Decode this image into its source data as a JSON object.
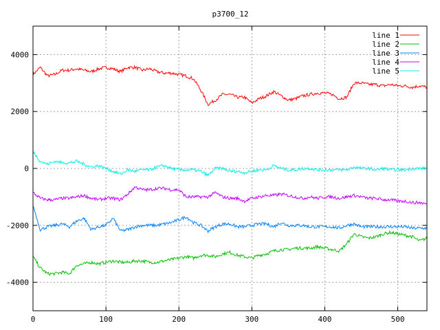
{
  "chart_data": {
    "type": "line",
    "title": "p3700_12",
    "xlabel": "",
    "ylabel": "",
    "xlim": [
      0,
      540
    ],
    "ylim": [
      -5000,
      5000
    ],
    "xticks": [
      0,
      100,
      200,
      300,
      400,
      500
    ],
    "yticks": [
      -4000,
      -2000,
      0,
      2000,
      4000
    ],
    "grid": true,
    "legend_position": "top-right",
    "x_step": 10,
    "series": [
      {
        "name": "line 1",
        "color": "#ff0000",
        "values": [
          3300,
          3550,
          3250,
          3300,
          3450,
          3450,
          3500,
          3450,
          3400,
          3500,
          3550,
          3500,
          3400,
          3550,
          3550,
          3450,
          3500,
          3400,
          3350,
          3350,
          3300,
          3250,
          3150,
          2750,
          2250,
          2400,
          2600,
          2600,
          2500,
          2500,
          2300,
          2450,
          2550,
          2700,
          2550,
          2400,
          2450,
          2550,
          2600,
          2650,
          2650,
          2600,
          2450,
          2500,
          3000,
          3000,
          2950,
          2950,
          2900,
          2950,
          2900,
          2900,
          2850,
          2900,
          2850
        ]
      },
      {
        "name": "line 2",
        "color": "#00c000",
        "values": [
          -3100,
          -3500,
          -3700,
          -3700,
          -3650,
          -3700,
          -3400,
          -3350,
          -3300,
          -3350,
          -3300,
          -3250,
          -3300,
          -3300,
          -3250,
          -3250,
          -3300,
          -3300,
          -3250,
          -3200,
          -3150,
          -3100,
          -3150,
          -3050,
          -3050,
          -3100,
          -3000,
          -2950,
          -3050,
          -3100,
          -3150,
          -3050,
          -3000,
          -2900,
          -2850,
          -2850,
          -2800,
          -2800,
          -2800,
          -2750,
          -2800,
          -2850,
          -2900,
          -2650,
          -2300,
          -2400,
          -2450,
          -2400,
          -2300,
          -2250,
          -2300,
          -2350,
          -2400,
          -2550,
          -2450
        ]
      },
      {
        "name": "line 3",
        "color": "#0080ff",
        "values": [
          -1300,
          -2150,
          -2050,
          -2000,
          -1950,
          -2050,
          -1850,
          -1750,
          -2150,
          -2050,
          -2000,
          -1750,
          -2200,
          -2150,
          -2050,
          -2000,
          -2000,
          -2000,
          -1950,
          -1900,
          -1800,
          -1700,
          -1900,
          -2000,
          -2200,
          -2050,
          -1950,
          -1950,
          -2050,
          -2050,
          -2000,
          -1950,
          -1950,
          -2050,
          -1900,
          -2000,
          -2000,
          -2000,
          -2050,
          -2050,
          -2050,
          -2050,
          -2100,
          -2000,
          -1950,
          -2050,
          -2050,
          -2050,
          -2050,
          -2050,
          -2050,
          -2050,
          -2100,
          -2100,
          -2100
        ]
      },
      {
        "name": "line 4",
        "color": "#c000ff",
        "values": [
          -850,
          -1050,
          -1100,
          -1100,
          -1050,
          -1050,
          -1000,
          -950,
          -1050,
          -1100,
          -1050,
          -1050,
          -1100,
          -900,
          -650,
          -750,
          -750,
          -700,
          -700,
          -750,
          -750,
          -1000,
          -1000,
          -1000,
          -1000,
          -850,
          -1000,
          -1050,
          -1050,
          -1150,
          -1050,
          -1000,
          -950,
          -950,
          -900,
          -950,
          -1000,
          -1050,
          -1000,
          -1050,
          -1000,
          -1000,
          -1050,
          -1000,
          -950,
          -1000,
          -1050,
          -1050,
          -1100,
          -1100,
          -1150,
          -1150,
          -1200,
          -1200,
          -1250
        ]
      },
      {
        "name": "line 5",
        "color": "#00eeee",
        "values": [
          600,
          250,
          150,
          250,
          200,
          200,
          250,
          150,
          50,
          100,
          0,
          -100,
          -200,
          -50,
          -100,
          -50,
          -50,
          50,
          100,
          0,
          -50,
          -50,
          -50,
          -100,
          -250,
          0,
          0,
          -100,
          -100,
          -150,
          -100,
          -50,
          -50,
          100,
          0,
          -50,
          -50,
          0,
          0,
          -50,
          -50,
          -50,
          -50,
          -50,
          50,
          0,
          0,
          -50,
          0,
          -50,
          -50,
          -50,
          0,
          0,
          0
        ]
      }
    ]
  }
}
